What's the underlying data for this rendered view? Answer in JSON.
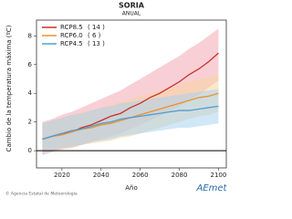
{
  "chart_data": {
    "type": "line",
    "title": "SORIA",
    "subtitle": "ANUAL",
    "y_label": "Cambio de la temperatura máxima (ºC)",
    "x_label": "Año",
    "x": [
      2010,
      2015,
      2020,
      2025,
      2030,
      2035,
      2040,
      2045,
      2050,
      2055,
      2060,
      2065,
      2070,
      2075,
      2080,
      2085,
      2090,
      2095,
      2100
    ],
    "xlim": [
      2007,
      2104
    ],
    "xticks": [
      2020,
      2040,
      2060,
      2080,
      2100
    ],
    "ylim": [
      -1.2,
      9.1
    ],
    "yticks": [
      0,
      2,
      4,
      6,
      8
    ],
    "zero_line": true,
    "legend": "upper-left",
    "series": [
      {
        "name": "RCP8.5",
        "count": "( 14 )",
        "color": "#c8302c",
        "band_color": "#f4a8b4",
        "values": [
          0.8,
          1.0,
          1.2,
          1.3,
          1.6,
          1.8,
          2.1,
          2.4,
          2.6,
          3.0,
          3.3,
          3.7,
          4.0,
          4.4,
          4.8,
          5.3,
          5.7,
          6.2,
          6.8
        ],
        "upper": [
          2.0,
          2.2,
          2.5,
          2.7,
          3.0,
          3.3,
          3.6,
          3.9,
          4.2,
          4.6,
          5.0,
          5.4,
          5.8,
          6.2,
          6.6,
          7.1,
          7.5,
          8.0,
          8.5
        ],
        "lower": [
          -0.3,
          -0.1,
          0.1,
          0.2,
          0.4,
          0.6,
          0.8,
          1.0,
          1.2,
          1.5,
          1.8,
          2.1,
          2.4,
          2.7,
          3.1,
          3.5,
          3.9,
          4.4,
          4.9
        ]
      },
      {
        "name": "RCP6.0",
        "count": "(  6 )",
        "color": "#e8932c",
        "band_color": "#f8d3a0",
        "values": [
          0.8,
          1.0,
          1.1,
          1.3,
          1.5,
          1.6,
          1.8,
          1.9,
          2.1,
          2.3,
          2.5,
          2.7,
          2.9,
          3.1,
          3.3,
          3.5,
          3.7,
          3.8,
          4.0
        ],
        "upper": [
          1.9,
          2.1,
          2.3,
          2.5,
          2.7,
          2.8,
          3.0,
          3.2,
          3.4,
          3.6,
          3.8,
          4.0,
          4.2,
          4.4,
          4.6,
          4.8,
          5.0,
          5.1,
          5.3
        ],
        "lower": [
          -0.2,
          0.0,
          0.1,
          0.2,
          0.4,
          0.5,
          0.6,
          0.7,
          0.9,
          1.0,
          1.2,
          1.4,
          1.6,
          1.8,
          2.0,
          2.2,
          2.4,
          2.5,
          2.7
        ]
      },
      {
        "name": "RCP4.5",
        "count": "( 13 )",
        "color": "#4f9fd0",
        "band_color": "#a9d4ee",
        "values": [
          0.8,
          1.0,
          1.2,
          1.4,
          1.5,
          1.7,
          1.9,
          2.0,
          2.2,
          2.3,
          2.4,
          2.5,
          2.6,
          2.7,
          2.8,
          2.8,
          2.9,
          3.0,
          3.1
        ],
        "upper": [
          1.9,
          2.1,
          2.3,
          2.5,
          2.6,
          2.8,
          3.0,
          3.1,
          3.3,
          3.4,
          3.5,
          3.6,
          3.7,
          3.8,
          3.9,
          4.0,
          4.1,
          4.2,
          4.3
        ],
        "lower": [
          -0.2,
          0.0,
          0.2,
          0.3,
          0.4,
          0.6,
          0.7,
          0.8,
          1.0,
          1.1,
          1.2,
          1.3,
          1.4,
          1.5,
          1.6,
          1.6,
          1.7,
          1.8,
          1.9
        ]
      }
    ],
    "source": "© Agencia Estatal de Meteorología",
    "logo": "AEmet"
  }
}
